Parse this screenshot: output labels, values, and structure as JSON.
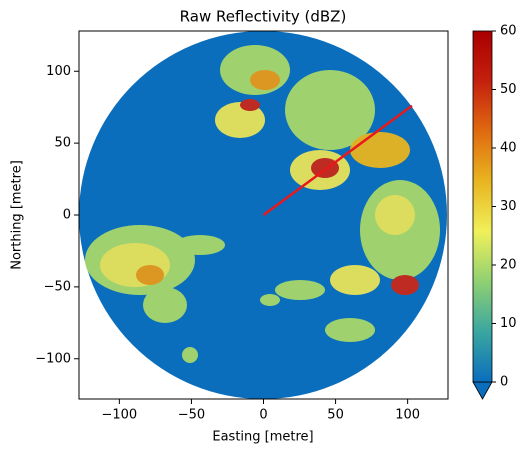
{
  "chart_data": {
    "type": "radar_ppi",
    "title": "Raw Reflectivity (dBZ)",
    "x_label": "Easting [metre]",
    "y_label": "Northing [metre]",
    "xlim": [
      -128,
      128
    ],
    "ylim": [
      -128,
      128
    ],
    "xticks": [
      {
        "value": -100,
        "label": "−100"
      },
      {
        "value": -50,
        "label": "−50"
      },
      0,
      50,
      100
    ],
    "yticks": [
      {
        "value": -100,
        "label": "−100"
      },
      {
        "value": -50,
        "label": "−50"
      },
      0,
      50,
      100
    ],
    "line": {
      "x": [
        0,
        103
      ],
      "y": [
        0,
        76
      ],
      "color": "#e8191c"
    },
    "colorbar": {
      "lim": [
        0,
        60
      ],
      "ticks": [
        0,
        10,
        20,
        30,
        40,
        50,
        60
      ],
      "colors": [
        "#0a6ebd",
        "#3aa6a0",
        "#8fd072",
        "#f0f05a",
        "#e8b520",
        "#e06a10",
        "#c4200e",
        "#a80000"
      ],
      "under_color": "#0a6ebd"
    }
  }
}
